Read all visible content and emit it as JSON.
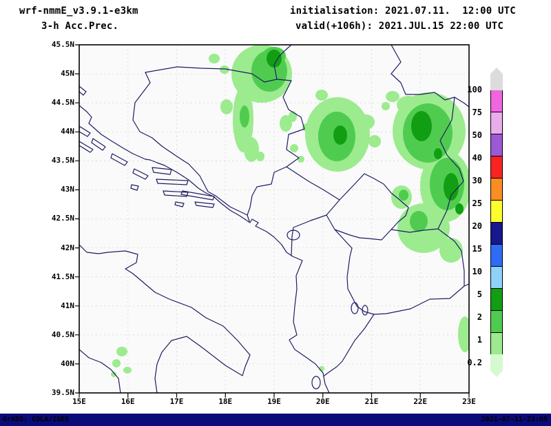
{
  "header": {
    "model": "wrf-nmmE_v3.9.1-e3km",
    "product": "3-h Acc.Prec.",
    "initialisation": "initialisation: 2021.07.11.  12:00 UTC",
    "valid": "valid(+106h): 2021.JUL.15 22:00 UTC"
  },
  "map": {
    "y_ticks": [
      "45.5N",
      "45N",
      "44.5N",
      "44N",
      "43.5N",
      "43N",
      "42.5N",
      "42N",
      "41.5N",
      "41N",
      "40.5N",
      "40N",
      "39.5N"
    ],
    "x_ticks": [
      "15E",
      "16E",
      "17E",
      "18E",
      "19E",
      "20E",
      "21E",
      "22E",
      "23E"
    ]
  },
  "legend": {
    "labels": [
      "100",
      "75",
      "50",
      "40",
      "30",
      "25",
      "20",
      "15",
      "10",
      "5",
      "2",
      "1",
      "0.2"
    ],
    "segment_colors": [
      "#dcdcdc",
      "#f265e0",
      "#eaacea",
      "#9b59d6",
      "#fb2222",
      "#fc8d22",
      "#fdfd2e",
      "#17178f",
      "#2e6cf5",
      "#8ed1fa",
      "#129e12",
      "#4fcc4f",
      "#9ceb8e",
      "#d6fad0"
    ]
  },
  "precip_colors": {
    "light": "#9ceb8e",
    "mid": "#4fcc4f",
    "dark": "#129e12"
  },
  "map_style": {
    "line_color": "#1c1c64",
    "grid_color": "#d8d8d8",
    "plot_bg": "#fafafa",
    "frame_color": "#000000"
  },
  "footer": {
    "left": "GrADS: COLA/IGES",
    "right": "2021-07-11-23:05",
    "bar_color": "#0a0a78"
  }
}
